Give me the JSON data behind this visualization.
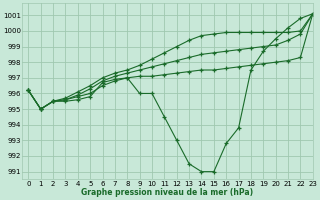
{
  "title": "Graphe pression niveau de la mer (hPa)",
  "background_color": "#c8e8d8",
  "grid_color": "#a0c8b0",
  "line_color": "#1a6b2a",
  "marker_color": "#1a6b2a",
  "xlim": [
    -0.5,
    23
  ],
  "ylim": [
    990.5,
    1001.8
  ],
  "yticks": [
    991,
    992,
    993,
    994,
    995,
    996,
    997,
    998,
    999,
    1000,
    1001
  ],
  "xticks": [
    0,
    1,
    2,
    3,
    4,
    5,
    6,
    7,
    8,
    9,
    10,
    11,
    12,
    13,
    14,
    15,
    16,
    17,
    18,
    19,
    20,
    21,
    22,
    23
  ],
  "series": [
    [
      996.2,
      995.0,
      995.5,
      995.5,
      995.6,
      995.8,
      996.7,
      996.9,
      997.0,
      996.0,
      996.0,
      994.5,
      993.0,
      991.5,
      991.0,
      991.0,
      992.8,
      993.8,
      997.5,
      998.7,
      999.5,
      1000.2,
      1000.8,
      1001.1
    ],
    [
      996.2,
      995.0,
      995.5,
      995.6,
      995.8,
      996.0,
      996.5,
      996.8,
      997.0,
      997.1,
      997.1,
      997.2,
      997.3,
      997.4,
      997.5,
      997.5,
      997.6,
      997.7,
      997.8,
      997.9,
      998.0,
      998.1,
      998.3,
      1001.1
    ],
    [
      996.2,
      995.0,
      995.5,
      995.6,
      995.9,
      996.3,
      996.8,
      997.1,
      997.3,
      997.5,
      997.7,
      997.9,
      998.1,
      998.3,
      998.5,
      998.6,
      998.7,
      998.8,
      998.9,
      999.0,
      999.1,
      999.4,
      999.8,
      1001.1
    ],
    [
      996.2,
      995.0,
      995.5,
      995.7,
      996.1,
      996.5,
      997.0,
      997.3,
      997.5,
      997.8,
      998.2,
      998.6,
      999.0,
      999.4,
      999.7,
      999.8,
      999.9,
      999.9,
      999.9,
      999.9,
      999.9,
      999.9,
      1000.0,
      1001.1
    ]
  ]
}
